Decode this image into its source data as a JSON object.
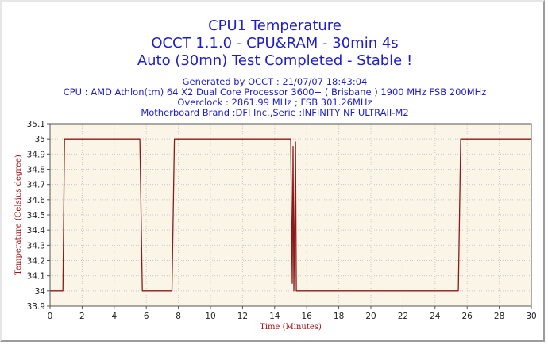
{
  "chart_data": {
    "type": "line",
    "title": "CPU1 Temperature",
    "subtitle_lines": [
      "OCCT 1.1.0 - CPU&RAM - 30min 4s",
      "Auto (30mn) Test Completed - Stable !"
    ],
    "info_lines": [
      "Generated by OCCT : 21/07/07 18:43:04",
      "CPU : AMD Athlon(tm) 64 X2 Dual Core Processor 3600+ ( Brisbane ) 1900 MHz FSB 200MHz",
      "Overclock : 2861.99 MHz ; FSB 301.26MHz",
      "Motherboard Brand :DFI Inc.,Serie :INFINITY NF ULTRAII-M2"
    ],
    "xlabel": "Time (Minutes)",
    "ylabel": "Temperature (Celsius degree)",
    "xlim": [
      0,
      30
    ],
    "ylim": [
      33.9,
      35.1
    ],
    "xticks": [
      "0",
      "2",
      "4",
      "6",
      "8",
      "10",
      "12",
      "14",
      "16",
      "18",
      "20",
      "22",
      "24",
      "26",
      "28",
      "30"
    ],
    "yticks": [
      "33.9",
      "34",
      "34.1",
      "34.2",
      "34.3",
      "34.4",
      "34.5",
      "34.6",
      "34.7",
      "34.8",
      "34.9",
      "35",
      "35.1"
    ],
    "grid": true,
    "series": [
      {
        "color": "#8b1a1a",
        "x": [
          0,
          0.8,
          0.9,
          5.6,
          5.75,
          7.6,
          7.75,
          15.0,
          15.1,
          15.15,
          15.2,
          15.3,
          15.35,
          15.45,
          15.6,
          25.45,
          25.6,
          30
        ],
        "y": [
          34.0,
          34.0,
          35.0,
          35.0,
          34.0,
          34.0,
          35.0,
          35.0,
          34.05,
          34.95,
          34.0,
          34.98,
          34.0,
          34.0,
          34.0,
          34.0,
          35.0,
          35.0
        ]
      }
    ]
  },
  "colors": {
    "plot_background": "#fbf5e8",
    "grid": "#c8c8c8",
    "line": "#8b1a1a",
    "title": "#1e1ecc",
    "axis_label": "#a01010"
  }
}
